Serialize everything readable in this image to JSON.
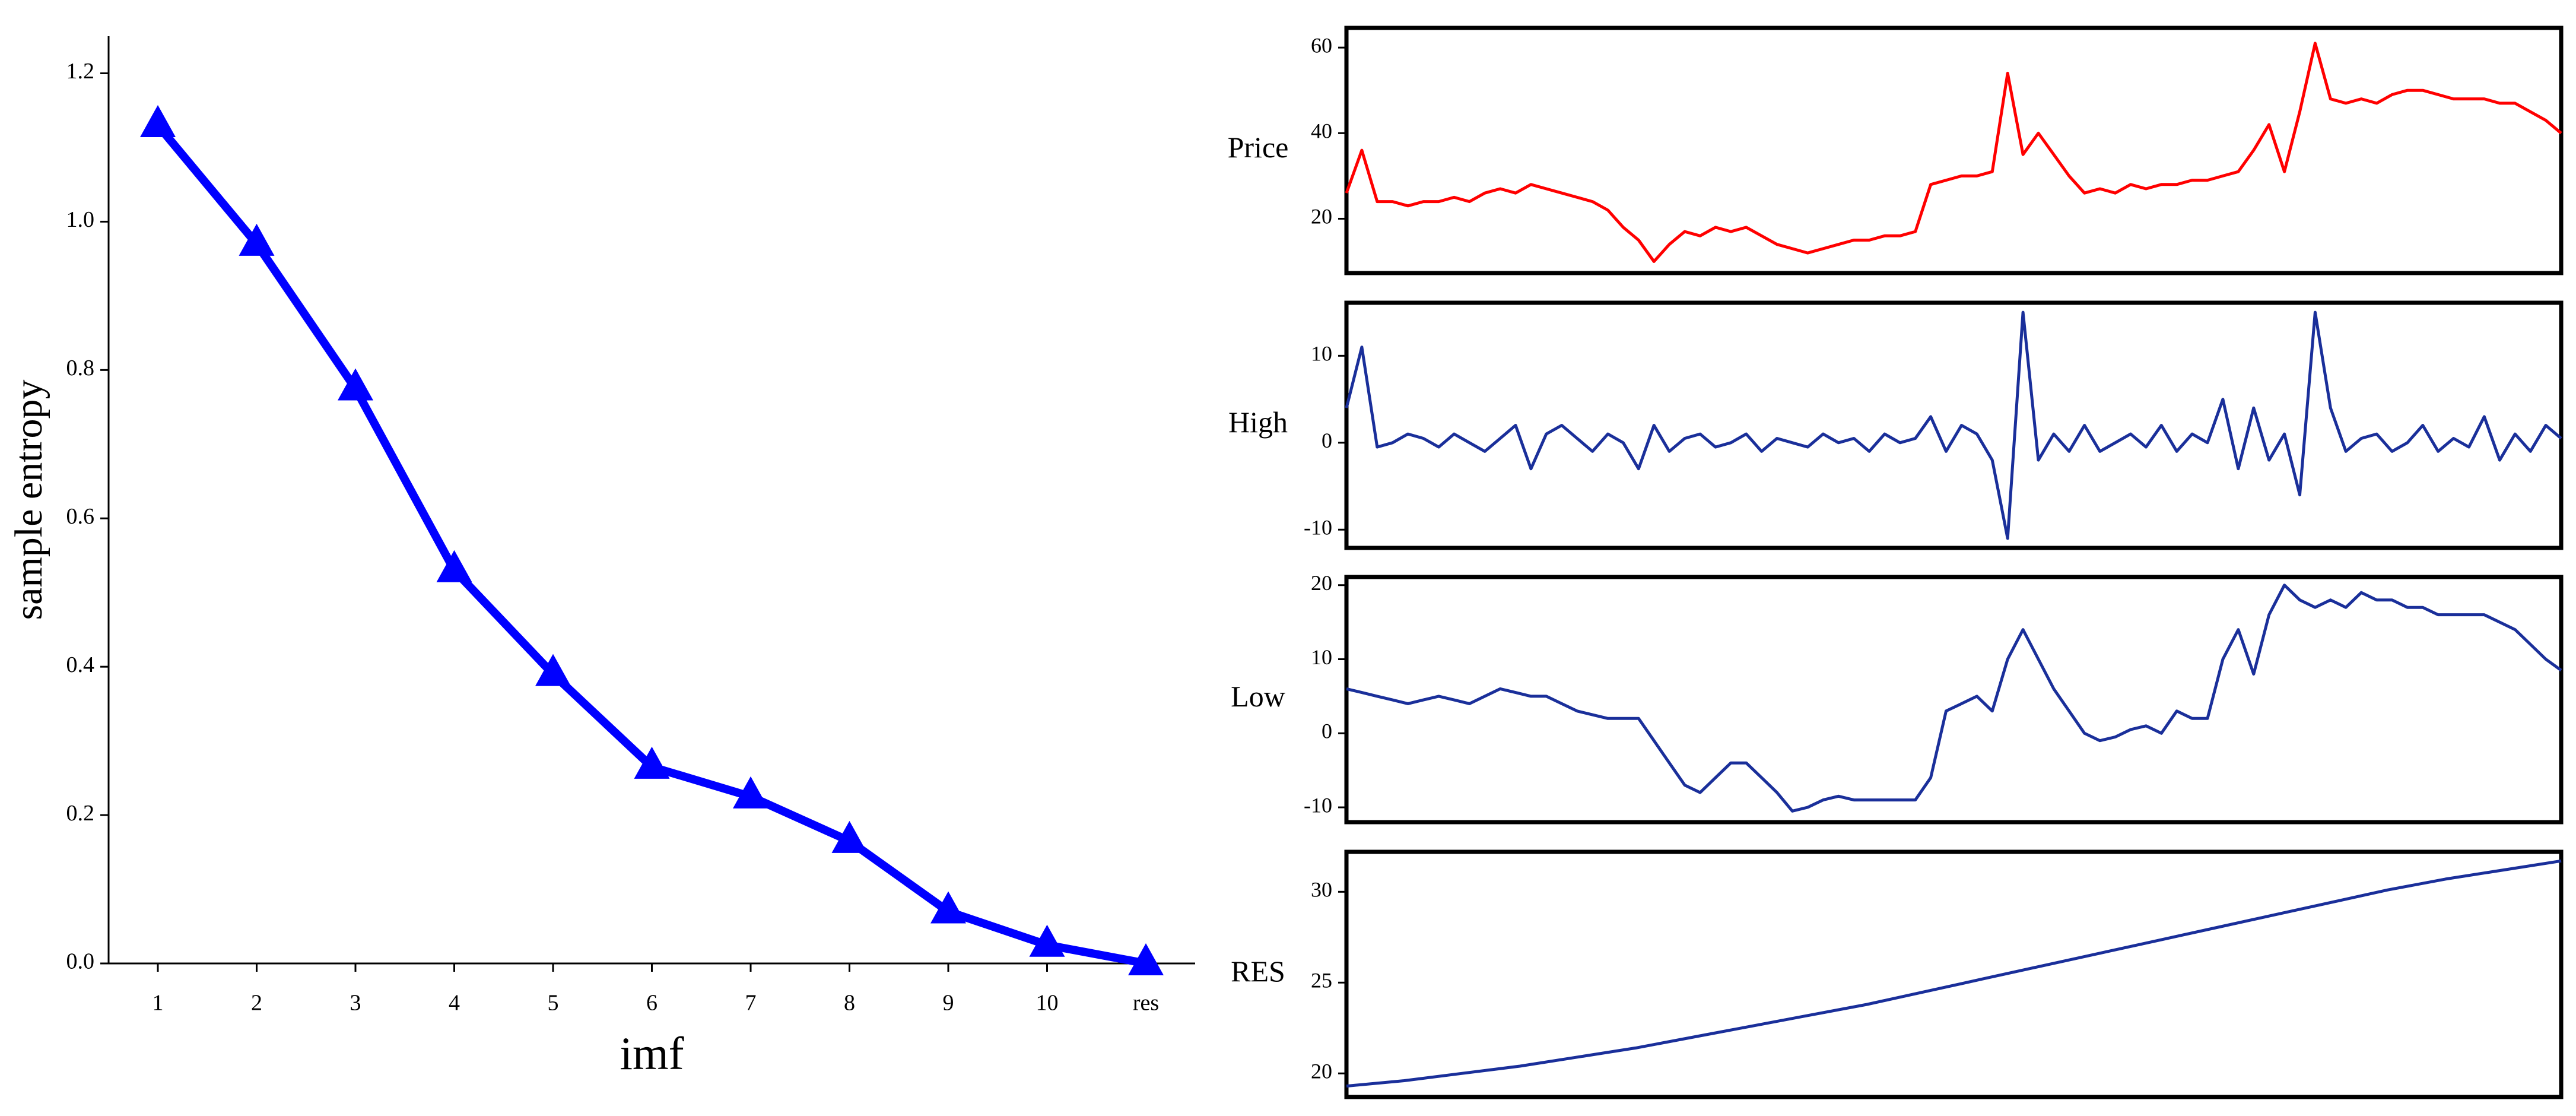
{
  "chart_data": [
    {
      "type": "line",
      "x_label": "imf",
      "y_label": "sample entropy",
      "marker": "triangle",
      "color": "#0000ff",
      "categories": [
        "1",
        "2",
        "3",
        "4",
        "5",
        "6",
        "7",
        "8",
        "9",
        "10",
        "res"
      ],
      "values": [
        1.13,
        0.97,
        0.775,
        0.53,
        0.39,
        0.265,
        0.225,
        0.165,
        0.07,
        0.025,
        0.0
      ],
      "ylim": [
        0,
        1.25
      ],
      "yticks": [
        {
          "value": 0,
          "label": "0.0"
        },
        {
          "value": 0.2,
          "label": "0.2"
        },
        {
          "value": 0.4,
          "label": "0.4"
        },
        {
          "value": 0.6,
          "label": "0.6"
        },
        {
          "value": 0.8,
          "label": "0.8"
        },
        {
          "value": 1.0,
          "label": "1.0"
        },
        {
          "value": 1.2,
          "label": "1.2"
        }
      ]
    },
    {
      "type": "line",
      "y_label": "Price",
      "color": "#ff0000",
      "ylim": [
        7.3,
        64.6
      ],
      "yticks": [
        20,
        40,
        60
      ],
      "values": [
        26,
        36,
        24,
        24,
        23,
        24,
        24,
        25,
        24,
        26,
        27,
        26,
        28,
        27,
        26,
        25,
        24,
        22,
        18,
        15,
        10,
        14,
        17,
        16,
        18,
        17,
        18,
        16,
        14,
        13,
        12,
        13,
        14,
        15,
        15,
        16,
        16,
        17,
        28,
        29,
        30,
        30,
        31,
        54,
        35,
        40,
        35,
        30,
        26,
        27,
        26,
        28,
        27,
        28,
        28,
        29,
        29,
        30,
        31,
        36,
        42,
        31,
        45,
        61,
        48,
        47,
        48,
        47,
        49,
        50,
        50,
        49,
        48,
        48,
        48,
        47,
        47,
        45,
        43,
        40
      ]
    },
    {
      "type": "line",
      "y_label": "High",
      "color": "#1a2f9a",
      "ylim": [
        -12.1,
        16.1
      ],
      "yticks": [
        -10,
        0,
        10
      ],
      "values": [
        4,
        11,
        -0.5,
        0,
        1,
        0.5,
        -0.5,
        1,
        0,
        -1,
        0.5,
        2,
        -3,
        1,
        2,
        0.5,
        -1,
        1,
        0,
        -3,
        2,
        -1,
        0.5,
        1,
        -0.5,
        0,
        1,
        -1,
        0.5,
        0,
        -0.5,
        1,
        0,
        0.5,
        -1,
        1,
        0,
        0.5,
        3,
        -1,
        2,
        1,
        -2,
        -11,
        15,
        -2,
        1,
        -1,
        2,
        -1,
        0,
        1,
        -0.5,
        2,
        -1,
        1,
        0,
        5,
        -3,
        4,
        -2,
        1,
        -6,
        15,
        4,
        -1,
        0.5,
        1,
        -1,
        0,
        2,
        -1,
        0.5,
        -0.5,
        3,
        -2,
        1,
        -1,
        2,
        0.5
      ]
    },
    {
      "type": "line",
      "y_label": "Low",
      "color": "#1a2f9a",
      "ylim": [
        -12.0,
        21.1
      ],
      "yticks": [
        -10,
        0,
        10,
        20
      ],
      "values": [
        6,
        5.5,
        5,
        4.5,
        4,
        4.5,
        5,
        4.5,
        4,
        5,
        6,
        5.5,
        5,
        5,
        4,
        3,
        2.5,
        2,
        2,
        2,
        -1,
        -4,
        -7,
        -8,
        -6,
        -4,
        -4,
        -6,
        -8,
        -10.5,
        -10,
        -9,
        -8.5,
        -9,
        -9,
        -9,
        -9,
        -9,
        -6,
        3,
        4,
        5,
        3,
        10,
        14,
        10,
        6,
        3,
        0,
        -1,
        -0.5,
        0.5,
        1,
        0,
        3,
        2,
        2,
        10,
        14,
        8,
        16,
        20,
        18,
        17,
        18,
        17,
        19,
        18,
        18,
        17,
        17,
        16,
        16,
        16,
        16,
        15,
        14,
        12,
        10,
        8.5
      ]
    },
    {
      "type": "line",
      "y_label": "RES",
      "color": "#1a2f9a",
      "ylim": [
        18.7,
        32.2
      ],
      "yticks": [
        20,
        25,
        30
      ],
      "values": [
        19.3,
        19.6,
        20.0,
        20.4,
        20.9,
        21.4,
        22.0,
        22.6,
        23.2,
        23.8,
        24.5,
        25.2,
        25.9,
        26.6,
        27.3,
        28.0,
        28.7,
        29.4,
        30.1,
        30.7,
        31.2,
        31.7
      ]
    }
  ]
}
